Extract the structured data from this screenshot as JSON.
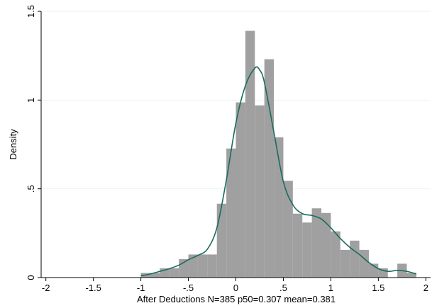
{
  "chart_data": {
    "type": "histogram",
    "title": "",
    "xlabel": "After Deductions N=385 p50=0.307 mean=0.381",
    "ylabel": "Density",
    "xlim": [
      -2.05,
      2.05
    ],
    "ylim": [
      0,
      1.5
    ],
    "grid": true,
    "legend": "none",
    "x_ticks": [
      -2,
      -1.5,
      -1,
      -0.5,
      0,
      0.5,
      1,
      1.5,
      2
    ],
    "x_tick_labels": [
      "-2",
      "-1.5",
      "-1",
      "-.5",
      "0",
      ".5",
      "1",
      "1.5",
      "2"
    ],
    "y_ticks": [
      0,
      0.5,
      1,
      1.5
    ],
    "y_tick_labels": [
      "0",
      ".5",
      "1",
      "1.5"
    ],
    "colors": {
      "bars": "#a0a0a0",
      "density_line": "#1a6b5e",
      "grid": "#eaf2f3",
      "axis": "#000000"
    },
    "bars": [
      {
        "x0": -1.0,
        "x1": -0.9,
        "density": 0.026
      },
      {
        "x0": -0.9,
        "x1": -0.8,
        "density": 0.026
      },
      {
        "x0": -0.8,
        "x1": -0.7,
        "density": 0.052
      },
      {
        "x0": -0.7,
        "x1": -0.6,
        "density": 0.052
      },
      {
        "x0": -0.6,
        "x1": -0.5,
        "density": 0.104
      },
      {
        "x0": -0.5,
        "x1": -0.4,
        "density": 0.13
      },
      {
        "x0": -0.4,
        "x1": -0.3,
        "density": 0.13
      },
      {
        "x0": -0.3,
        "x1": -0.2,
        "density": 0.13
      },
      {
        "x0": -0.2,
        "x1": -0.1,
        "density": 0.416
      },
      {
        "x0": -0.1,
        "x1": 0.0,
        "density": 0.727
      },
      {
        "x0": 0.0,
        "x1": 0.1,
        "density": 0.987
      },
      {
        "x0": 0.1,
        "x1": 0.2,
        "density": 1.39
      },
      {
        "x0": 0.2,
        "x1": 0.3,
        "density": 0.97
      },
      {
        "x0": 0.3,
        "x1": 0.4,
        "density": 1.23
      },
      {
        "x0": 0.4,
        "x1": 0.5,
        "density": 0.79
      },
      {
        "x0": 0.5,
        "x1": 0.6,
        "density": 0.545
      },
      {
        "x0": 0.6,
        "x1": 0.7,
        "density": 0.36
      },
      {
        "x0": 0.7,
        "x1": 0.8,
        "density": 0.31
      },
      {
        "x0": 0.8,
        "x1": 0.9,
        "density": 0.39
      },
      {
        "x0": 0.9,
        "x1": 1.0,
        "density": 0.364
      },
      {
        "x0": 1.0,
        "x1": 1.1,
        "density": 0.26
      },
      {
        "x0": 1.1,
        "x1": 1.2,
        "density": 0.156
      },
      {
        "x0": 1.2,
        "x1": 1.3,
        "density": 0.208
      },
      {
        "x0": 1.3,
        "x1": 1.4,
        "density": 0.156
      },
      {
        "x0": 1.4,
        "x1": 1.5,
        "density": 0.078
      },
      {
        "x0": 1.5,
        "x1": 1.6,
        "density": 0.052
      },
      {
        "x0": 1.6,
        "x1": 1.7,
        "density": 0.0
      },
      {
        "x0": 1.7,
        "x1": 1.8,
        "density": 0.078
      },
      {
        "x0": 1.8,
        "x1": 1.9,
        "density": 0.026
      }
    ],
    "density_curve": {
      "x": [
        -1.0,
        -0.9,
        -0.8,
        -0.7,
        -0.6,
        -0.5,
        -0.4,
        -0.3,
        -0.2,
        -0.1,
        0.0,
        0.1,
        0.2,
        0.25,
        0.3,
        0.4,
        0.5,
        0.6,
        0.7,
        0.8,
        0.9,
        1.0,
        1.1,
        1.2,
        1.3,
        1.4,
        1.5,
        1.6,
        1.7,
        1.8,
        1.9
      ],
      "y": [
        0.01,
        0.02,
        0.035,
        0.05,
        0.07,
        0.1,
        0.125,
        0.16,
        0.28,
        0.55,
        0.87,
        1.08,
        1.18,
        1.17,
        1.1,
        0.82,
        0.54,
        0.41,
        0.36,
        0.35,
        0.33,
        0.28,
        0.22,
        0.17,
        0.13,
        0.085,
        0.05,
        0.035,
        0.04,
        0.035,
        0.02
      ]
    }
  }
}
